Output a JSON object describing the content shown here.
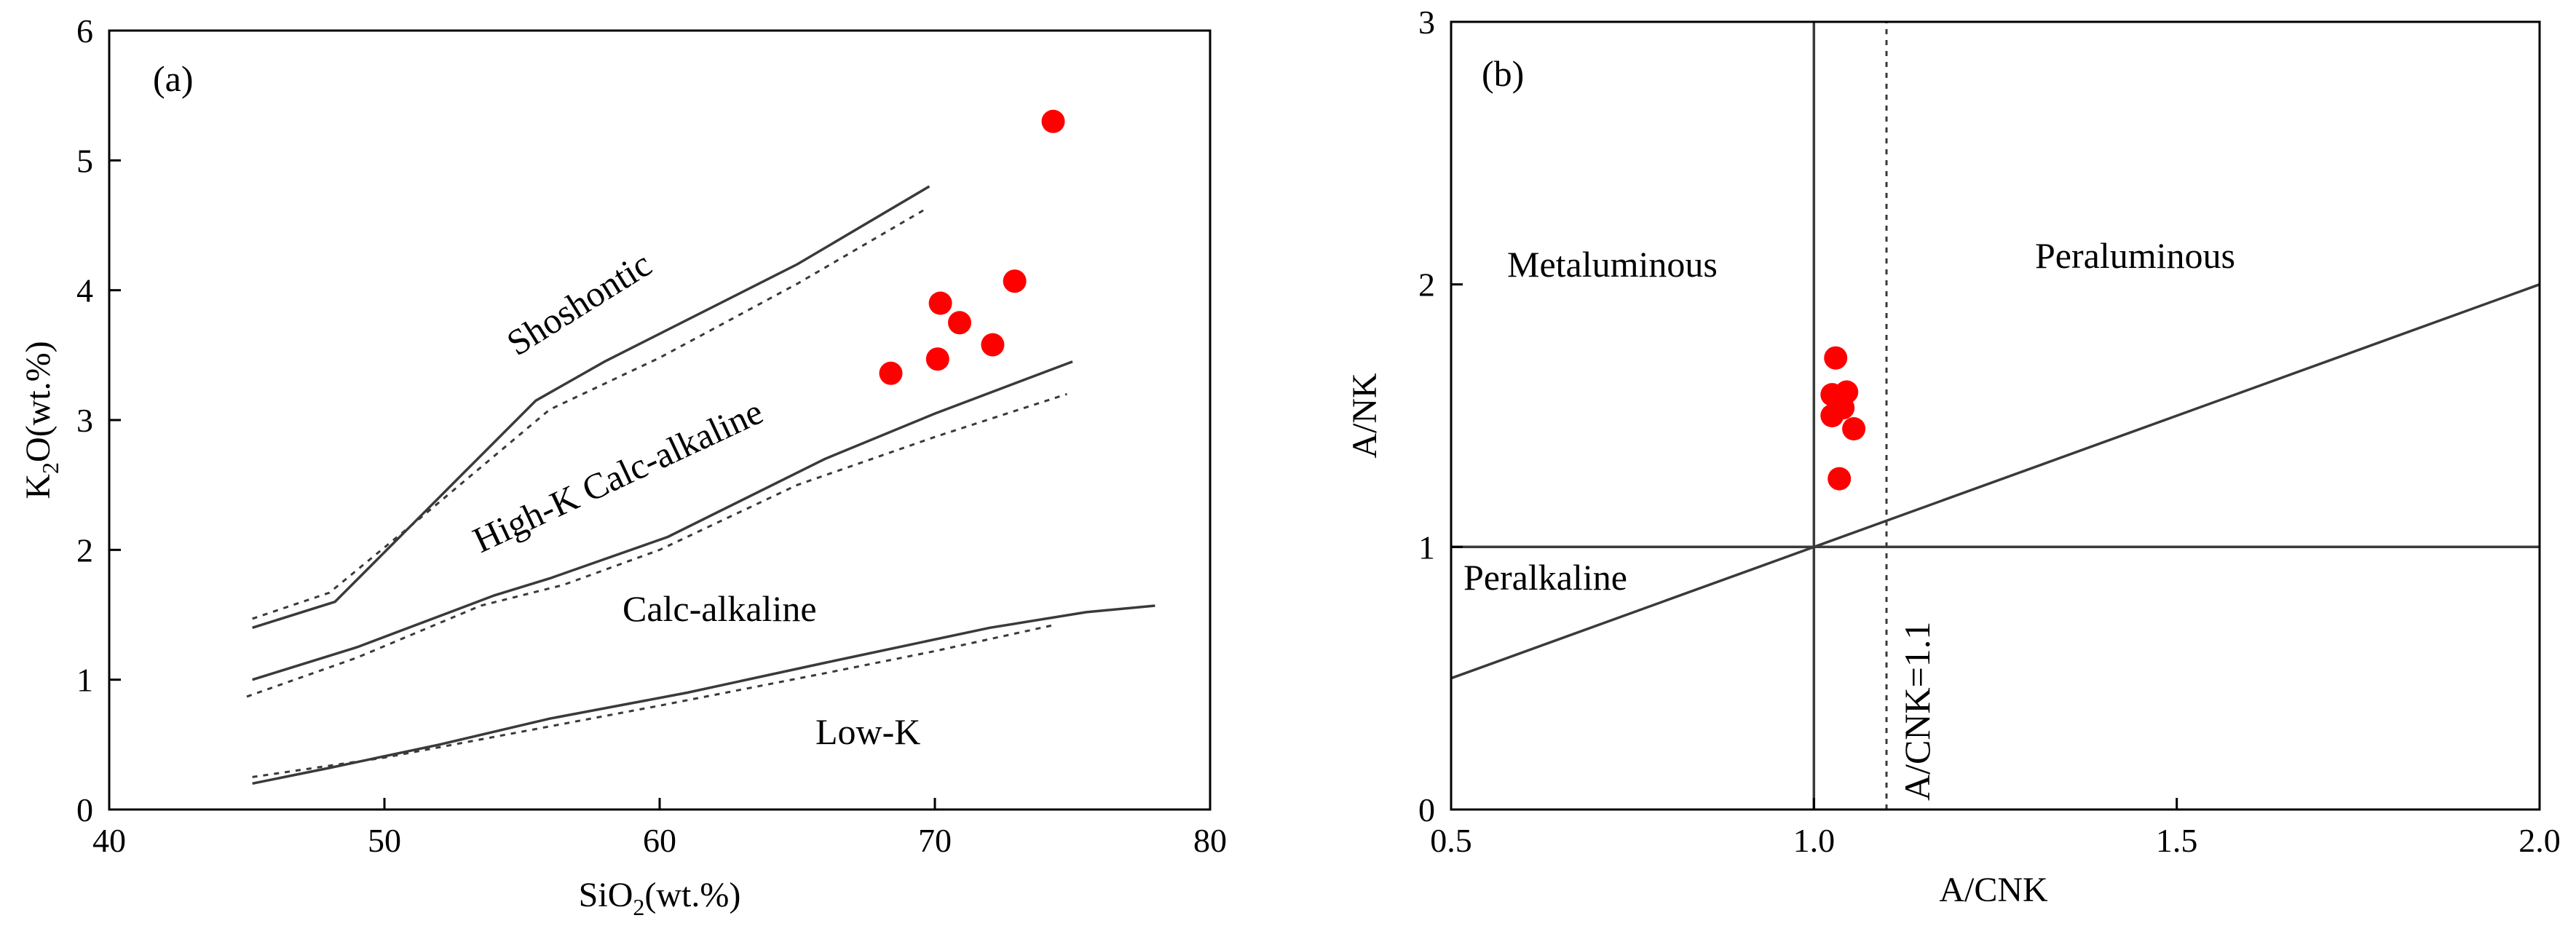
{
  "figure_colors": {
    "axis": "#000000",
    "boundary": "#3a3a3a",
    "point": "#ff0000"
  },
  "chart_data": [
    {
      "type": "scatter",
      "panel_label": "(a)",
      "title": "",
      "xlabel_base": "SiO",
      "xlabel_sub": "2",
      "xlabel_tail": "(wt.%)",
      "ylabel_base": "K",
      "ylabel_sub": "2",
      "ylabel_tail": "O(wt.%)",
      "xlim": [
        40,
        80
      ],
      "ylim": [
        0,
        6
      ],
      "xticks": [
        40,
        50,
        60,
        70,
        80
      ],
      "yticks": [
        0,
        1,
        2,
        3,
        4,
        5,
        6
      ],
      "regions": [
        "Shoshontic",
        "High-K Calc-alkaline",
        "Calc-alkaline",
        "Low-K"
      ],
      "boundaries": [
        {
          "name": "shoshonitic-highK-solid",
          "style": "solid",
          "points": [
            [
              45.2,
              1.4
            ],
            [
              48.2,
              1.6
            ],
            [
              51.5,
              2.3
            ],
            [
              55.5,
              3.15
            ],
            [
              58,
              3.45
            ],
            [
              65,
              4.2
            ],
            [
              69.8,
              4.8
            ]
          ]
        },
        {
          "name": "shoshonitic-highK-dotted",
          "style": "dotted",
          "points": [
            [
              45.2,
              1.47
            ],
            [
              48,
              1.67
            ],
            [
              51.5,
              2.28
            ],
            [
              56,
              3.08
            ],
            [
              60,
              3.48
            ],
            [
              65,
              4.05
            ],
            [
              69.7,
              4.63
            ]
          ]
        },
        {
          "name": "highK-calcalk-solid",
          "style": "solid",
          "points": [
            [
              45.2,
              1.0
            ],
            [
              49,
              1.25
            ],
            [
              54,
              1.65
            ],
            [
              56,
              1.78
            ],
            [
              60.3,
              2.1
            ],
            [
              66,
              2.7
            ],
            [
              70,
              3.05
            ],
            [
              75,
              3.45
            ]
          ]
        },
        {
          "name": "highK-calcalk-dotted",
          "style": "dotted",
          "points": [
            [
              45,
              0.87
            ],
            [
              49,
              1.17
            ],
            [
              53.5,
              1.57
            ],
            [
              56.5,
              1.73
            ],
            [
              60,
              2.0
            ],
            [
              65,
              2.5
            ],
            [
              70,
              2.87
            ],
            [
              74.8,
              3.2
            ]
          ]
        },
        {
          "name": "calcalk-lowK-solid",
          "style": "solid",
          "points": [
            [
              45.2,
              0.2
            ],
            [
              48,
              0.32
            ],
            [
              52,
              0.5
            ],
            [
              56,
              0.7
            ],
            [
              61,
              0.9
            ],
            [
              66,
              1.13
            ],
            [
              72,
              1.4
            ],
            [
              75.5,
              1.52
            ],
            [
              78,
              1.57
            ]
          ]
        },
        {
          "name": "calcalk-lowK-dotted",
          "style": "dotted",
          "points": [
            [
              45.2,
              0.25
            ],
            [
              50,
              0.4
            ],
            [
              55,
              0.6
            ],
            [
              60,
              0.8
            ],
            [
              66,
              1.05
            ],
            [
              70,
              1.22
            ],
            [
              74.3,
              1.42
            ]
          ]
        }
      ],
      "series": [
        {
          "name": "samples",
          "points": [
            [
              74.3,
              5.3
            ],
            [
              72.9,
              4.07
            ],
            [
              70.2,
              3.9
            ],
            [
              70.9,
              3.75
            ],
            [
              72.1,
              3.58
            ],
            [
              70.1,
              3.47
            ],
            [
              68.4,
              3.36
            ]
          ]
        }
      ]
    },
    {
      "type": "scatter",
      "panel_label": "(b)",
      "title": "",
      "xlabel": "A/CNK",
      "ylabel": "A/NK",
      "xlim": [
        0.5,
        2.0
      ],
      "ylim": [
        0,
        3
      ],
      "xticks": [
        "0.5",
        "1.0",
        "1.5",
        "2.0"
      ],
      "yticks": [
        "0",
        "1",
        "2",
        "3"
      ],
      "regions": [
        "Metaluminous",
        "Peraluminous",
        "Peralkaline"
      ],
      "reference_label": "A/CNK=1.1",
      "boundaries": [
        {
          "name": "vertical-acnk-1.0",
          "style": "solid",
          "points": [
            [
              1.0,
              0
            ],
            [
              1.0,
              3
            ]
          ]
        },
        {
          "name": "horizontal-ank-1.0",
          "style": "solid",
          "points": [
            [
              0.5,
              1.0
            ],
            [
              2.0,
              1.0
            ]
          ]
        },
        {
          "name": "diagonal-ank-equals-acnk",
          "style": "solid",
          "points": [
            [
              0.5,
              0.5
            ],
            [
              2.0,
              2.0
            ]
          ]
        },
        {
          "name": "vertical-acnk-1.1",
          "style": "dotted",
          "points": [
            [
              1.1,
              0
            ],
            [
              1.1,
              3
            ]
          ]
        }
      ],
      "series": [
        {
          "name": "samples",
          "points": [
            [
              1.03,
              1.72
            ],
            [
              1.025,
              1.58
            ],
            [
              1.045,
              1.59
            ],
            [
              1.04,
              1.53
            ],
            [
              1.025,
              1.5
            ],
            [
              1.055,
              1.45
            ],
            [
              1.035,
              1.26
            ]
          ]
        }
      ]
    }
  ]
}
